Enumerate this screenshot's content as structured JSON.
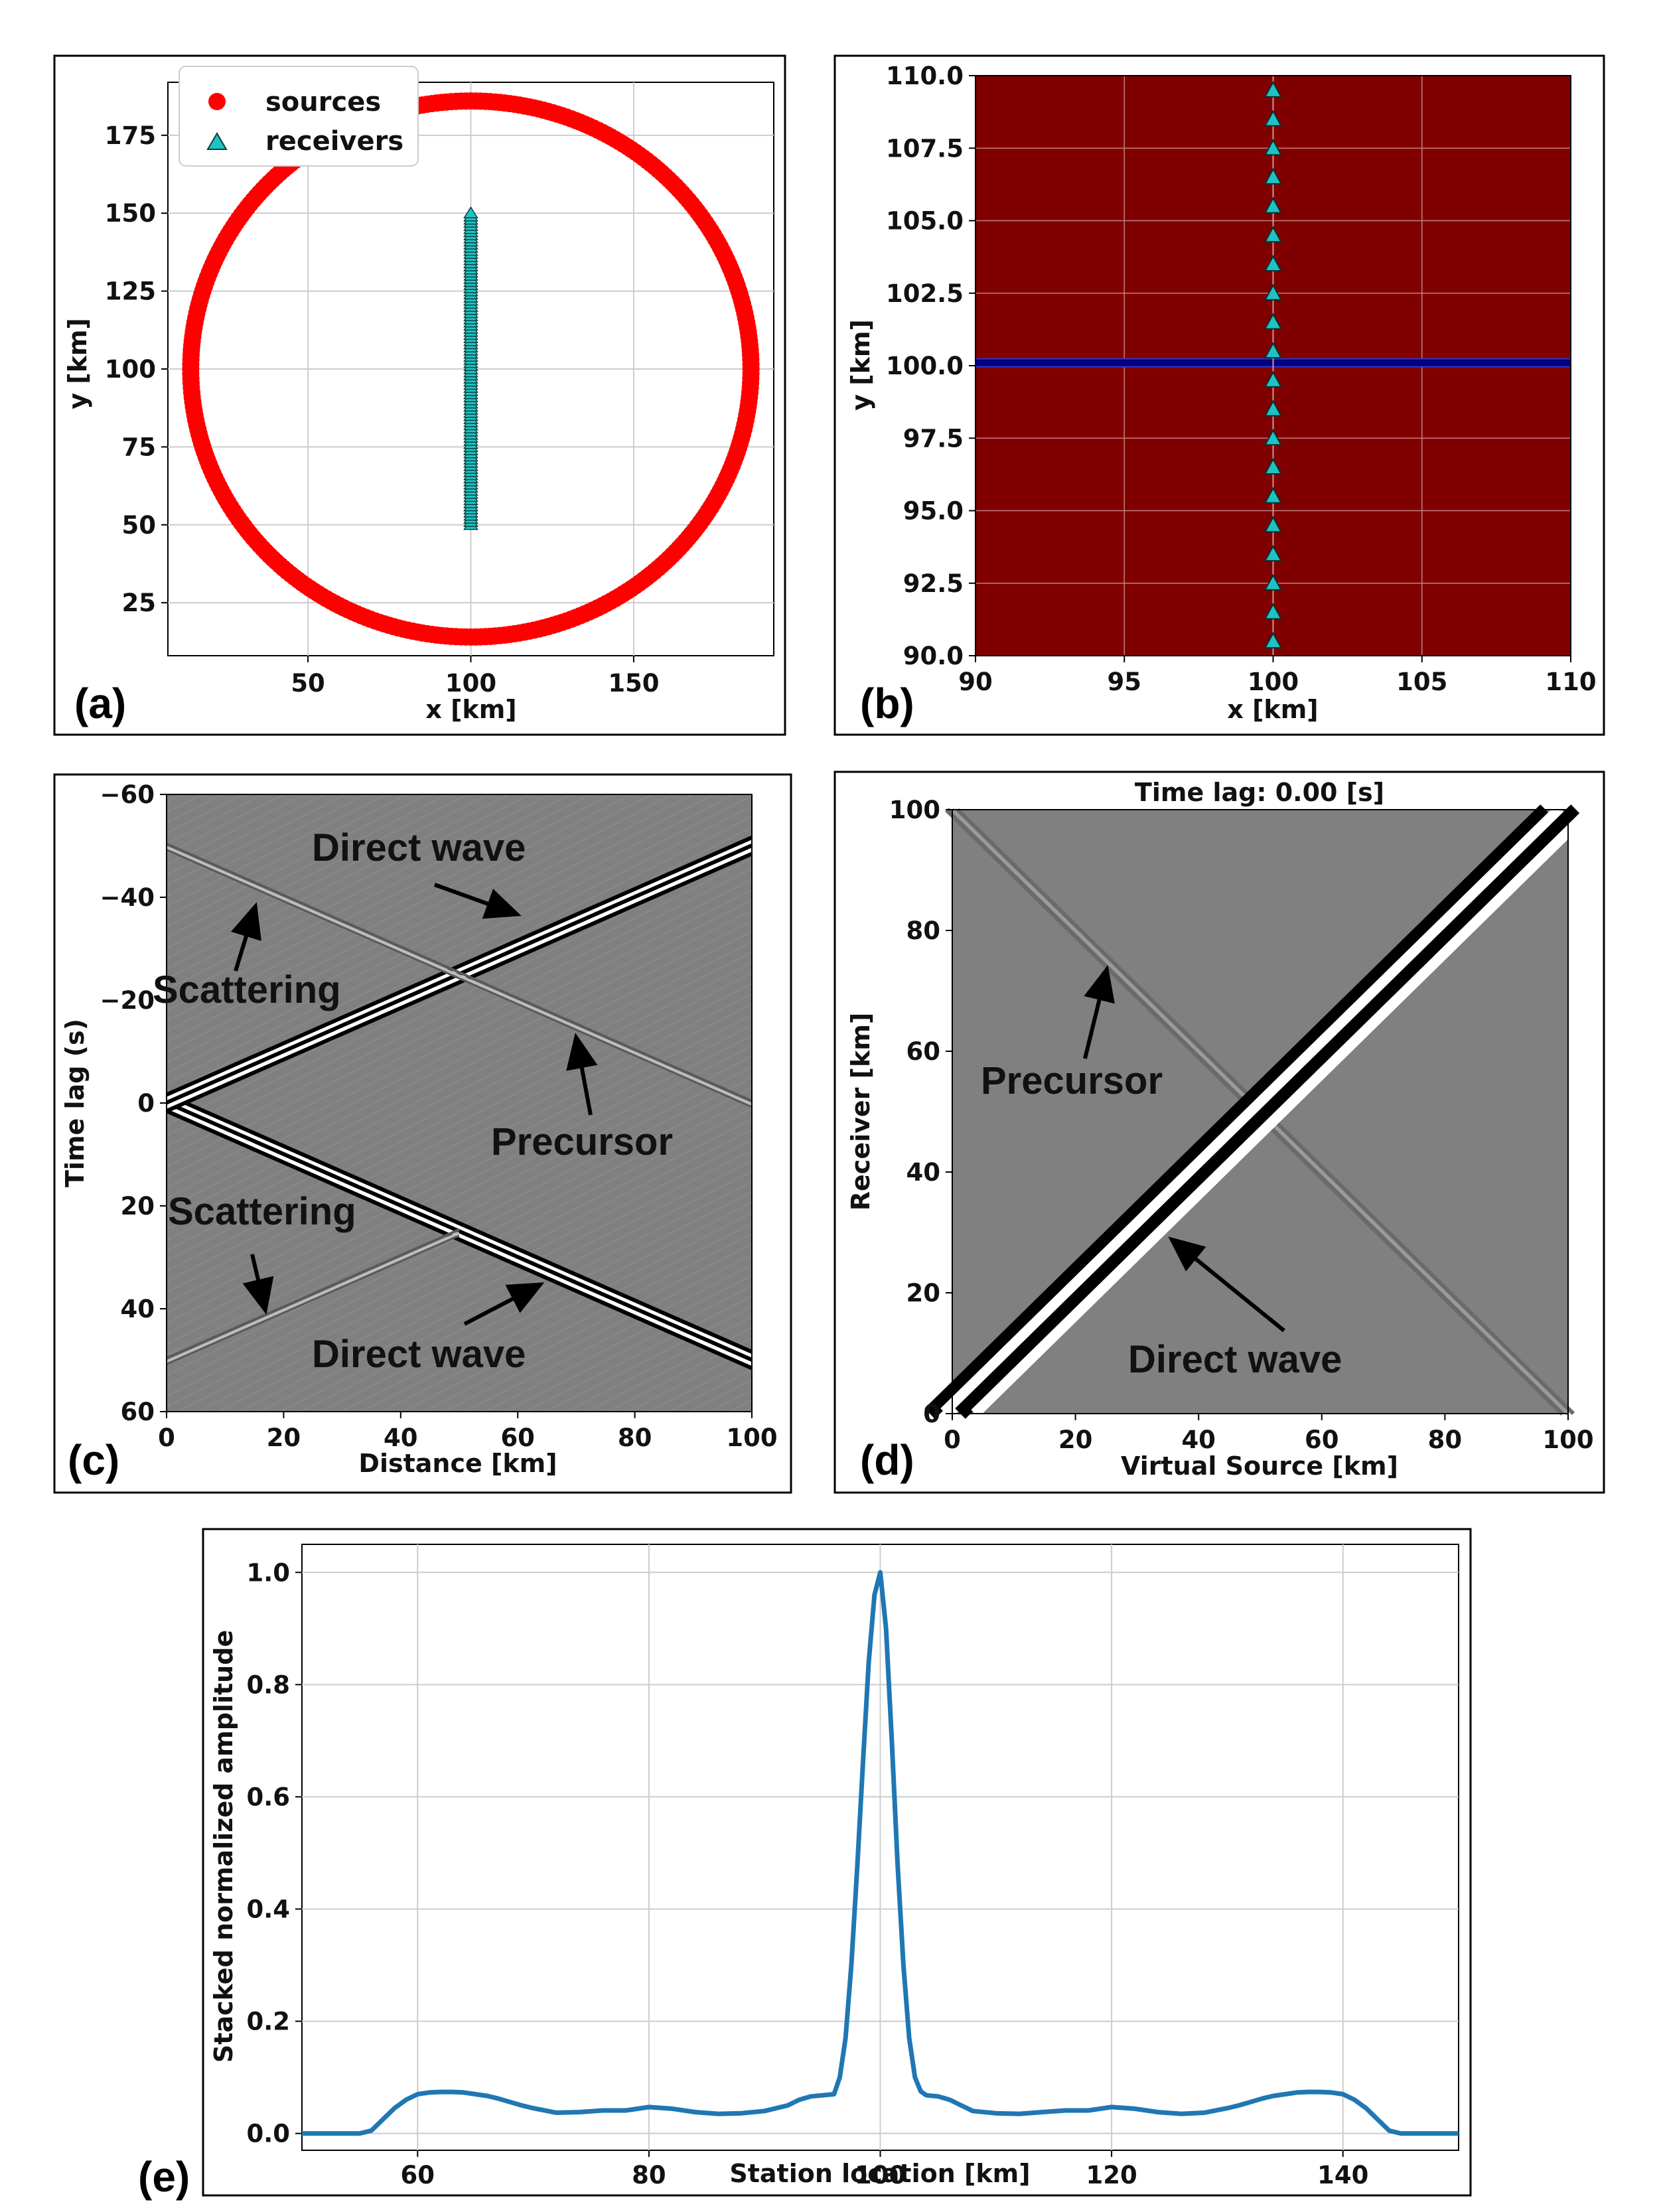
{
  "chart_data": [
    {
      "panel": "(a)",
      "type": "scatter",
      "title": "",
      "xlabel": "x [km]",
      "ylabel": "y [km]",
      "xlim": [
        7,
        193
      ],
      "ylim": [
        8,
        192
      ],
      "xticks": [
        50,
        100,
        150
      ],
      "yticks": [
        25,
        50,
        75,
        100,
        125,
        150,
        175
      ],
      "grid": true,
      "legend": {
        "placement": "top-left",
        "entries": [
          "sources",
          "receivers"
        ]
      },
      "series": [
        {
          "name": "sources",
          "marker": "circle",
          "color": "#ff0000",
          "shape": "circle",
          "center": [
            100,
            100
          ],
          "radius": 86,
          "count": 360
        },
        {
          "name": "receivers",
          "marker": "triangle",
          "color": "#1fc2c2",
          "x": 100,
          "y_start": 50,
          "y_end": 150,
          "spacing": 1
        }
      ]
    },
    {
      "panel": "(b)",
      "type": "heatmap",
      "title": "",
      "xlabel": "x [km]",
      "ylabel": "y [km]",
      "xlim": [
        90,
        110
      ],
      "ylim": [
        90,
        110
      ],
      "xticks": [
        90,
        95,
        100,
        105,
        110
      ],
      "yticks": [
        "90.0",
        "92.5",
        "95.0",
        "97.5",
        "100.0",
        "102.5",
        "105.0",
        "107.5",
        "110.0"
      ],
      "grid": true,
      "background": "#800000",
      "scatterer_line_y": 100.1,
      "scatterer_color": "#000080",
      "receivers": {
        "x": 100,
        "y_start": 90,
        "y_end": 110,
        "spacing": 1
      }
    },
    {
      "panel": "(c)",
      "type": "heatmap",
      "title": "",
      "xlabel": "Distance [km]",
      "ylabel": "Time lag (s)",
      "xlim": [
        0,
        100
      ],
      "ylim": [
        -60,
        60
      ],
      "xticks": [
        0,
        20,
        40,
        60,
        80,
        100
      ],
      "yticks": [
        -60,
        -40,
        -20,
        0,
        20,
        40,
        60
      ],
      "events": [
        {
          "name": "direct-causal",
          "from": [
            0,
            0
          ],
          "to": [
            100,
            50
          ]
        },
        {
          "name": "direct-acausal",
          "from": [
            0,
            0
          ],
          "to": [
            100,
            -50
          ]
        },
        {
          "name": "scatter-causal",
          "from": [
            0,
            50
          ],
          "to": [
            50,
            25
          ]
        },
        {
          "name": "scatter-acausal",
          "from": [
            0,
            -50
          ],
          "to": [
            50,
            -25
          ]
        },
        {
          "name": "precursor",
          "from": [
            50,
            -25
          ],
          "to": [
            100,
            0
          ]
        }
      ],
      "annotations": [
        "Direct wave",
        "Scattering",
        "Precursor",
        "Scattering",
        "Direct wave"
      ]
    },
    {
      "panel": "(d)",
      "type": "heatmap",
      "title": "Time lag: 0.00 [s]",
      "xlabel": "Virtual Source [km]",
      "ylabel": "Receiver [km]",
      "xlim": [
        0,
        100
      ],
      "ylim": [
        0,
        100
      ],
      "xticks": [
        0,
        20,
        40,
        60,
        80,
        100
      ],
      "yticks": [
        0,
        20,
        40,
        60,
        80,
        100
      ],
      "events": [
        {
          "name": "direct-diagonal",
          "from": [
            0,
            0
          ],
          "to": [
            100,
            100
          ]
        },
        {
          "name": "precursor-anti-diagonal",
          "from": [
            0,
            100
          ],
          "to": [
            100,
            0
          ]
        }
      ],
      "annotations": [
        "Precursor",
        "Direct wave"
      ]
    },
    {
      "panel": "(e)",
      "type": "line",
      "title": "",
      "xlabel": "Station location [km]",
      "ylabel": "Stacked normalized amplitude",
      "xlim": [
        50,
        150
      ],
      "ylim": [
        -0.03,
        1.05
      ],
      "xticks": [
        60,
        80,
        100,
        120,
        140
      ],
      "yticks": [
        "0.0",
        "0.2",
        "0.4",
        "0.6",
        "0.8",
        "1.0"
      ],
      "grid": true,
      "color": "#1f77b4",
      "series": [
        {
          "name": "stacked amplitude",
          "x": [
            50,
            55,
            56,
            57,
            58,
            59,
            60,
            61,
            62,
            63,
            64,
            65,
            66,
            67,
            68,
            69,
            70,
            72,
            74,
            76,
            78,
            80,
            82,
            84,
            86,
            88,
            90,
            92,
            93,
            94,
            95,
            96,
            96.5,
            97,
            97.5,
            98,
            98.5,
            99,
            99.5,
            100,
            100.5,
            101,
            101.5,
            102,
            102.5,
            103,
            103.5,
            104,
            105,
            106,
            107,
            108,
            110,
            112,
            114,
            116,
            118,
            120,
            122,
            124,
            126,
            128,
            130,
            131,
            132,
            133,
            134,
            135,
            136,
            137,
            138,
            139,
            140,
            141,
            142,
            143,
            144,
            145,
            150
          ],
          "y": [
            0.0,
            0.0,
            0.005,
            0.025,
            0.045,
            0.06,
            0.07,
            0.073,
            0.074,
            0.074,
            0.073,
            0.07,
            0.067,
            0.062,
            0.056,
            0.05,
            0.045,
            0.037,
            0.038,
            0.041,
            0.041,
            0.047,
            0.044,
            0.038,
            0.035,
            0.036,
            0.04,
            0.05,
            0.06,
            0.066,
            0.068,
            0.07,
            0.1,
            0.17,
            0.3,
            0.47,
            0.66,
            0.84,
            0.96,
            1.0,
            0.9,
            0.7,
            0.48,
            0.3,
            0.17,
            0.1,
            0.075,
            0.068,
            0.066,
            0.06,
            0.05,
            0.04,
            0.036,
            0.035,
            0.038,
            0.041,
            0.041,
            0.047,
            0.044,
            0.038,
            0.035,
            0.037,
            0.045,
            0.05,
            0.056,
            0.062,
            0.067,
            0.07,
            0.073,
            0.074,
            0.074,
            0.073,
            0.07,
            0.06,
            0.045,
            0.025,
            0.005,
            0.0,
            0.0
          ]
        }
      ]
    }
  ]
}
